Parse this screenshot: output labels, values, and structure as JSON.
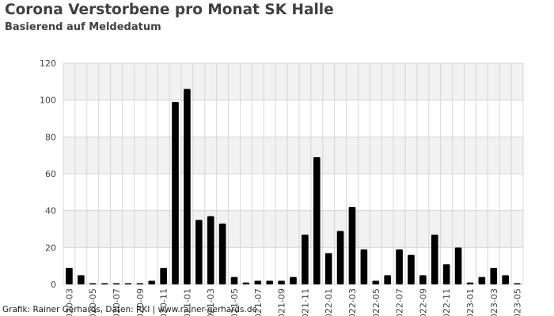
{
  "title": "Corona Verstorbene pro Monat SK Halle",
  "subtitle": "Basierend auf Meldedatum",
  "caption": "Grafik: Rainer Gerhards, Daten: RKI | www.rainer-gerhards.de",
  "colors": {
    "bar": "#000000",
    "band": "#f2f2f2",
    "grid": "#cfcfcf",
    "background": "#ffffff"
  },
  "chart_data": {
    "type": "bar",
    "title": "Corona Verstorbene pro Monat SK Halle",
    "subtitle": "Basierend auf Meldedatum",
    "xlabel": "",
    "ylabel": "",
    "ylim": [
      0,
      120
    ],
    "yticks": [
      0,
      20,
      40,
      60,
      80,
      100,
      120
    ],
    "grid": true,
    "legend": "none",
    "categories": [
      "2020-03",
      "2020-04",
      "2020-05",
      "2020-06",
      "2020-07",
      "2020-08",
      "2020-09",
      "2020-10",
      "2020-11",
      "2020-12",
      "2021-01",
      "2021-02",
      "2021-03",
      "2021-04",
      "2021-05",
      "2021-06",
      "2021-07",
      "2021-08",
      "2021-09",
      "2021-10",
      "2021-11",
      "2021-12",
      "2022-01",
      "2022-02",
      "2022-03",
      "2022-04",
      "2022-05",
      "2022-06",
      "2022-07",
      "2022-08",
      "2022-09",
      "2022-10",
      "2022-11",
      "2022-12",
      "2023-01",
      "2023-02",
      "2023-03",
      "2023-04",
      "2023-05"
    ],
    "values": [
      9,
      5,
      0,
      0,
      0,
      0,
      0,
      2,
      9,
      99,
      106,
      35,
      37,
      33,
      4,
      1,
      2,
      2,
      2,
      4,
      27,
      69,
      17,
      29,
      42,
      19,
      2,
      5,
      19,
      16,
      5,
      27,
      11,
      20,
      1,
      4,
      9,
      5,
      0
    ],
    "xtick_labels": [
      "2020-03",
      "2020-05",
      "2020-07",
      "2020-09",
      "2020-11",
      "2021-01",
      "2021-03",
      "2021-05",
      "2021-07",
      "2021-09",
      "2021-11",
      "2022-01",
      "2022-03",
      "2022-05",
      "2022-07",
      "2022-09",
      "2022-11",
      "2023-01",
      "2023-03",
      "2023-05"
    ]
  }
}
